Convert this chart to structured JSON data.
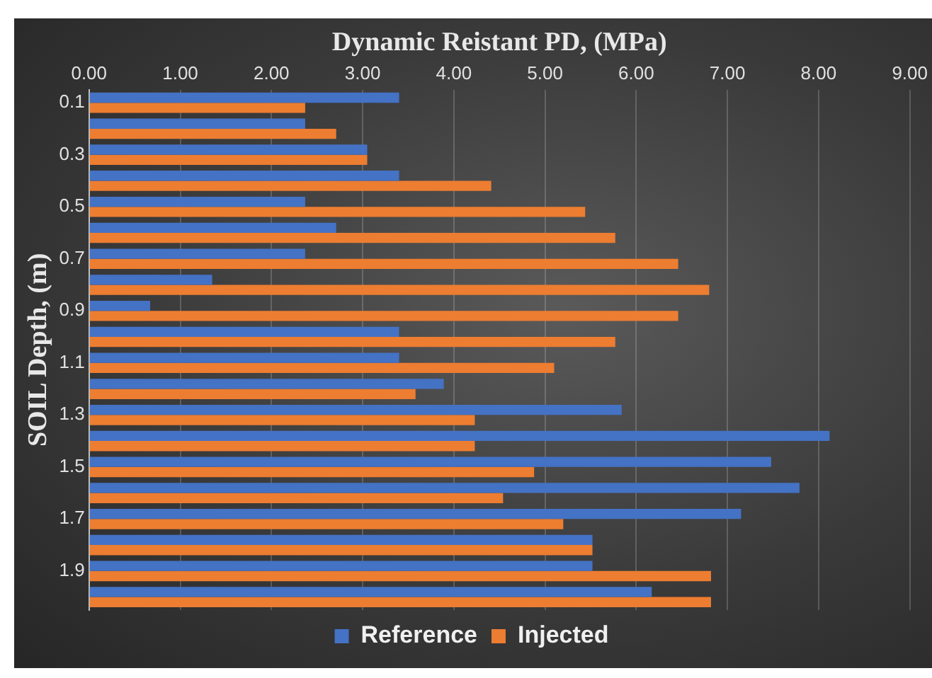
{
  "chart_data": {
    "type": "bar",
    "orientation": "horizontal",
    "xlabel": "Dynamic Reistant PD, (MPa)",
    "ylabel": "SOIL Depth, (m)",
    "categories": [
      "0.1",
      null,
      "0.3",
      null,
      "0.5",
      null,
      "0.7",
      null,
      "0.9",
      null,
      "1.1",
      null,
      "1.3",
      null,
      "1.5",
      null,
      "1.7",
      null,
      "1.9",
      null
    ],
    "series": [
      {
        "name": "Reference",
        "color": "#4472c4",
        "values": [
          3.4,
          2.37,
          3.05,
          3.4,
          2.37,
          2.71,
          2.37,
          1.35,
          0.67,
          3.4,
          3.4,
          3.89,
          5.84,
          8.12,
          7.48,
          7.79,
          7.15,
          5.52,
          5.52,
          6.17
        ]
      },
      {
        "name": "Injected",
        "color": "#ed7d31",
        "values": [
          2.37,
          2.71,
          3.05,
          4.41,
          5.44,
          5.77,
          6.46,
          6.8,
          6.46,
          5.77,
          5.1,
          3.58,
          4.23,
          4.23,
          4.88,
          4.54,
          5.2,
          5.52,
          6.82,
          6.82
        ]
      }
    ],
    "xlim": [
      0,
      9
    ],
    "xticks": [
      {
        "value": 0,
        "label": "0.00"
      },
      {
        "value": 1,
        "label": "1.00"
      },
      {
        "value": 2,
        "label": "2.00"
      },
      {
        "value": 3,
        "label": "3.00"
      },
      {
        "value": 4,
        "label": "4.00"
      },
      {
        "value": 5,
        "label": "5.00"
      },
      {
        "value": 6,
        "label": "6.00"
      },
      {
        "value": 7,
        "label": "7.00"
      },
      {
        "value": 8,
        "label": "8.00"
      },
      {
        "value": 9,
        "label": "9.00"
      }
    ],
    "grid": "x",
    "legend": "bottom"
  }
}
